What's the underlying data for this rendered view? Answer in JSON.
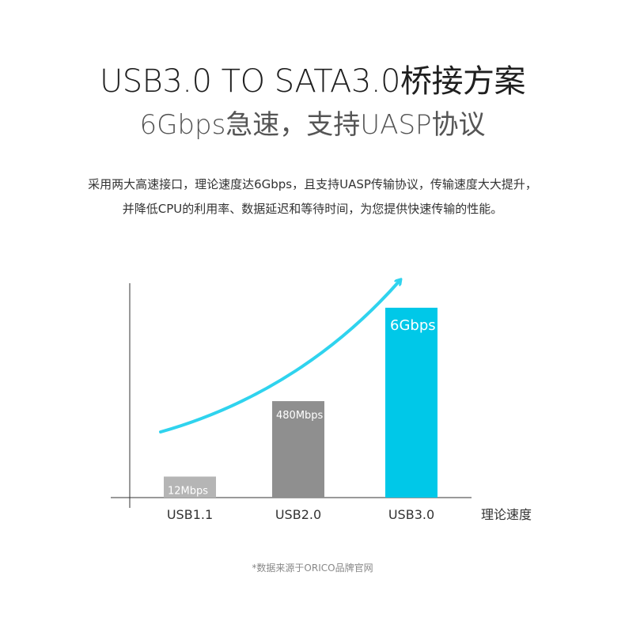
{
  "header": {
    "title": "USB3.0 TO SATA3.0桥接方案",
    "subtitle": "6Gbps急速，支持UASP协议"
  },
  "description": {
    "line1": "采用两大高速接口，理论速度达6Gbps，且支持UASP传输协议，传输速度大大提升，",
    "line2": "并降低CPU的利用率、数据延迟和等待时间，为您提供快速传输的性能。"
  },
  "chart_data": {
    "type": "bar",
    "categories": [
      "USB1.1",
      "USB2.0",
      "USB3.0"
    ],
    "values": [
      12,
      480,
      6000
    ],
    "value_labels": [
      "12Mbps",
      "480Mbps",
      "6Gbps"
    ],
    "xlabel": "理论速度",
    "ylabel": "",
    "colors": [
      "#b5b5b5",
      "#8f8f8f",
      "#00c8e8"
    ],
    "trend_arrow_color": "#2fd3ee",
    "scale": "nonlinear"
  },
  "footnote": "*数据来源于ORICO品牌官网"
}
